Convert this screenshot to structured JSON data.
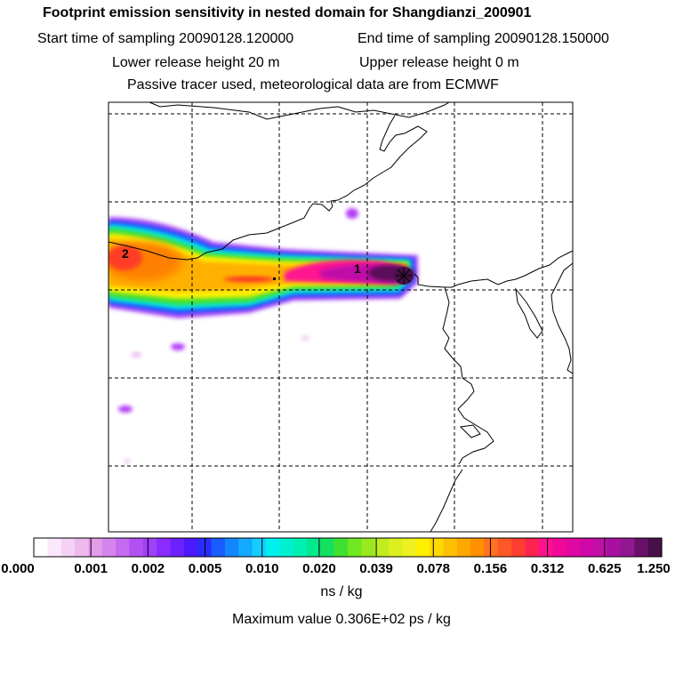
{
  "header": {
    "title": "Footprint emission sensitivity in nested domain for Shangdianzi_200901",
    "start_label": "Start time of sampling 20090128.120000",
    "end_label": "End time of sampling 20090128.150000",
    "lower_label": "Lower release height   20 m",
    "upper_label": "Upper release height    0 m",
    "tracer_label": "Passive tracer used, meteorological data are from ECMWF"
  },
  "map": {
    "markers": [
      "2",
      "1"
    ]
  },
  "colorbar": {
    "ticks": [
      "0.000",
      "0.001",
      "0.002",
      "0.005",
      "0.010",
      "0.020",
      "0.039",
      "0.078",
      "0.156",
      "0.312",
      "0.625",
      "1.250"
    ],
    "colors": [
      "#ffffff",
      "#fbe9fb",
      "#f5d2f5",
      "#eebaee",
      "#e29ce8",
      "#d585ec",
      "#c56bf0",
      "#b350f4",
      "#a040f8",
      "#8a2cff",
      "#6c22ff",
      "#4b1aff",
      "#2a2cff",
      "#1a5cff",
      "#1486ff",
      "#14aaff",
      "#14cdff",
      "#00f0f0",
      "#00f0d0",
      "#00f0b4",
      "#00e88c",
      "#14e060",
      "#40e030",
      "#70e820",
      "#9ae820",
      "#c0ec20",
      "#dcf020",
      "#eef020",
      "#fff000",
      "#ffd800",
      "#ffc000",
      "#ffa800",
      "#ff9000",
      "#ff7020",
      "#ff5828",
      "#ff3c30",
      "#ff2450",
      "#ff1090",
      "#f00898",
      "#e008a0",
      "#d008a8",
      "#c010a8",
      "#a810a0",
      "#901890",
      "#6a1068",
      "#481048"
    ],
    "units": "ns / kg",
    "max_value": "Maximum value  0.306E+02 ps / kg"
  }
}
